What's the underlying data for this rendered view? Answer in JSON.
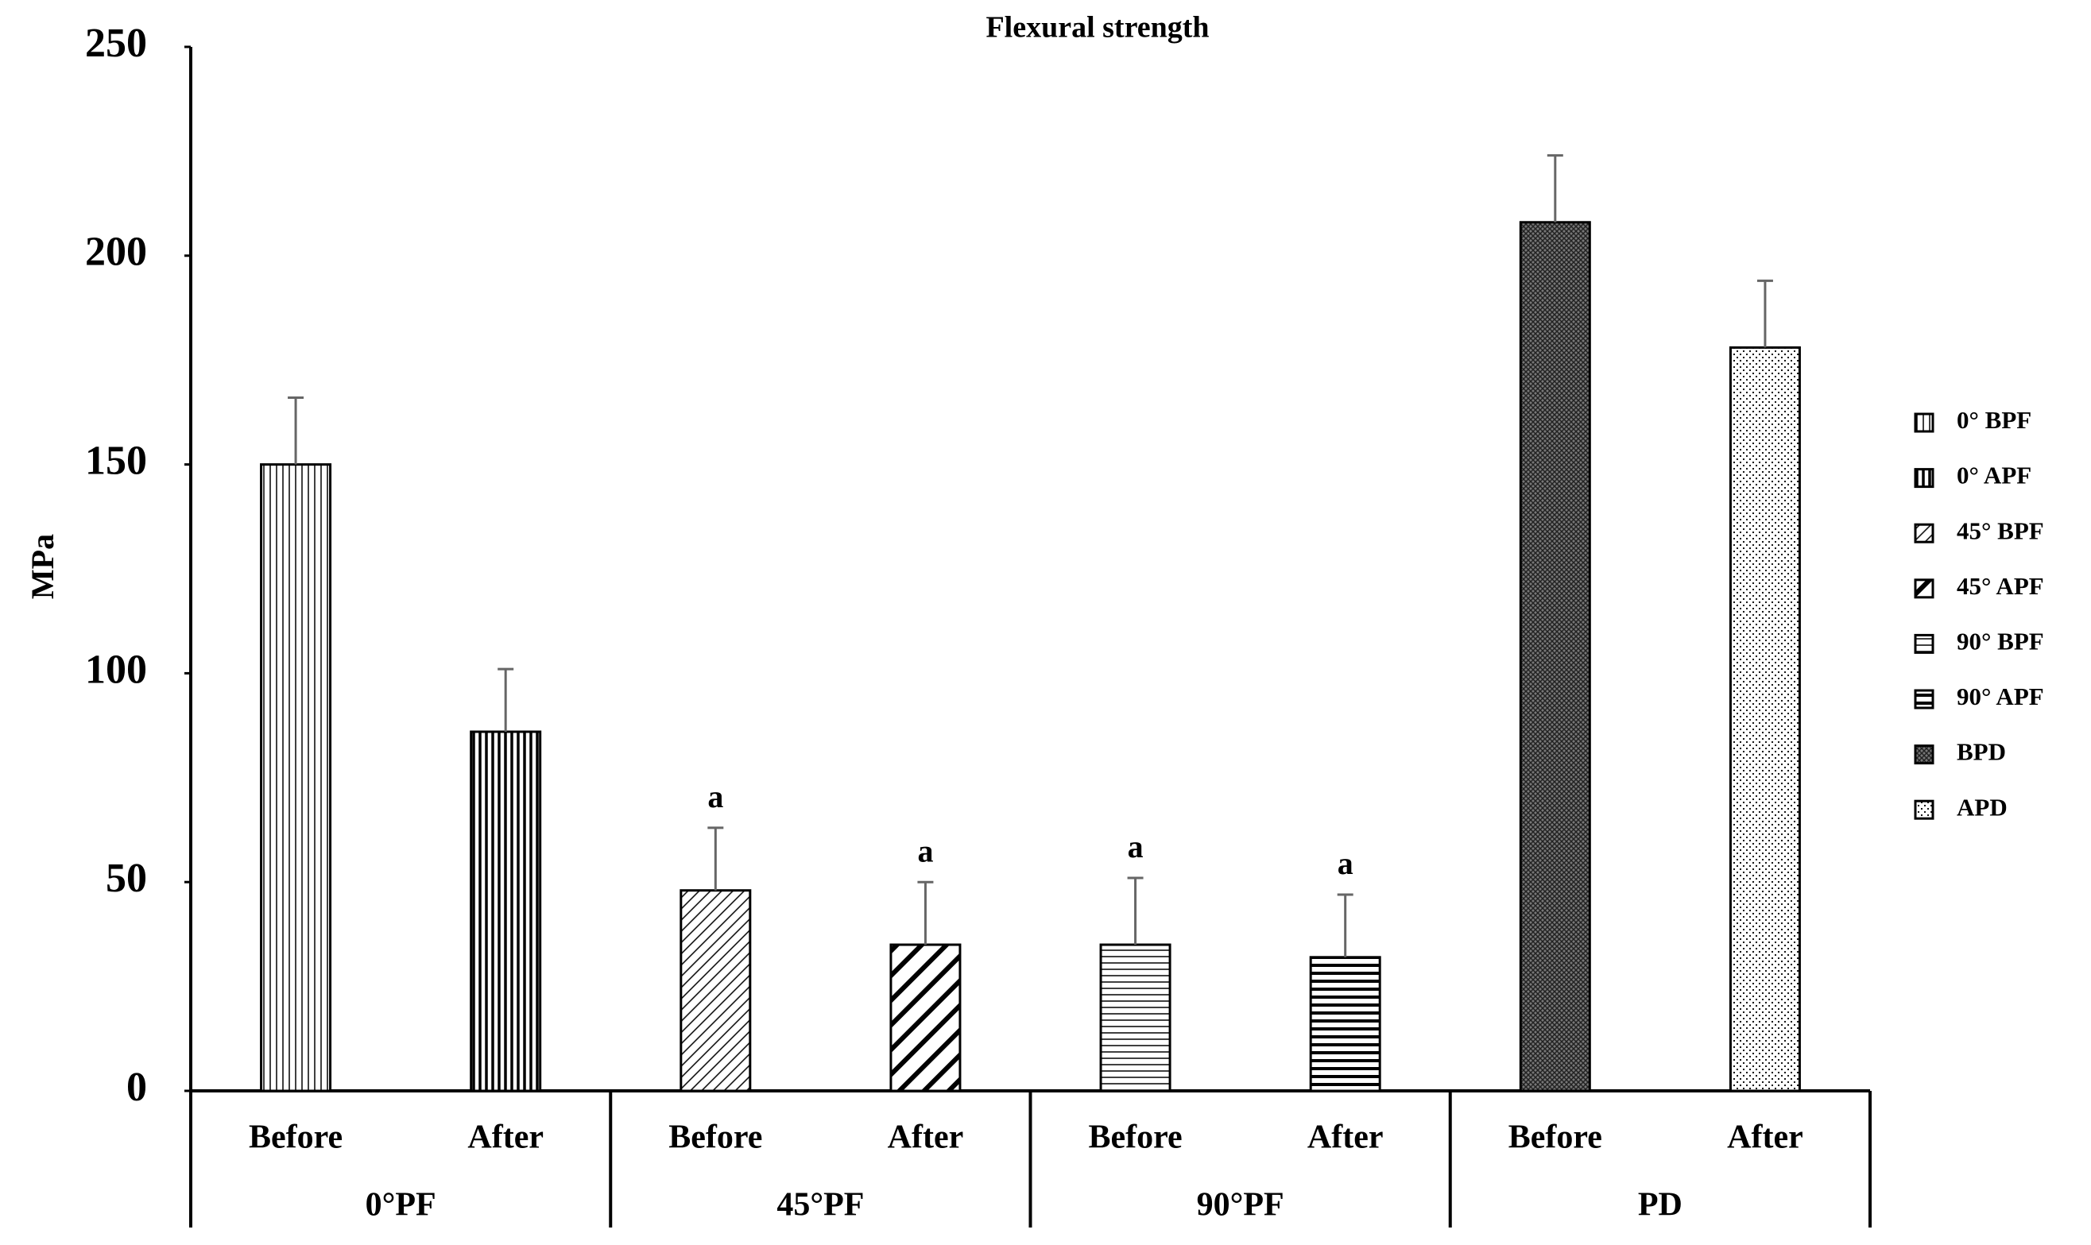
{
  "chart_data": {
    "type": "bar",
    "title": "Flexural strength",
    "y_label": "MPa",
    "categories": [
      "Before",
      "After",
      "Before",
      "After",
      "Before",
      "After",
      "Before",
      "After"
    ],
    "groups": [
      "0°PF",
      "45°PF",
      "90°PF",
      "PD"
    ],
    "legend": [
      "0° BPF",
      "0° APF",
      "45° BPF",
      "45° APF",
      "90° BPF",
      "90° APF",
      "BPD",
      "APD"
    ],
    "patterns": [
      "vertical-fine",
      "vertical-bold",
      "diagonal-fine",
      "diagonal-bold",
      "horizontal-fine",
      "horizontal-bold",
      "crosshatch",
      "dots"
    ],
    "values": [
      150,
      86,
      48,
      35,
      35,
      32,
      208,
      178
    ],
    "errors": [
      16,
      15,
      15,
      15,
      16,
      15,
      16,
      16
    ],
    "annotations": [
      null,
      null,
      "a",
      "a",
      "a",
      "a",
      null,
      null
    ],
    "ylim": [
      0,
      250
    ],
    "yticks": [
      0,
      50,
      100,
      150,
      200,
      250
    ],
    "legend_position": "right"
  }
}
